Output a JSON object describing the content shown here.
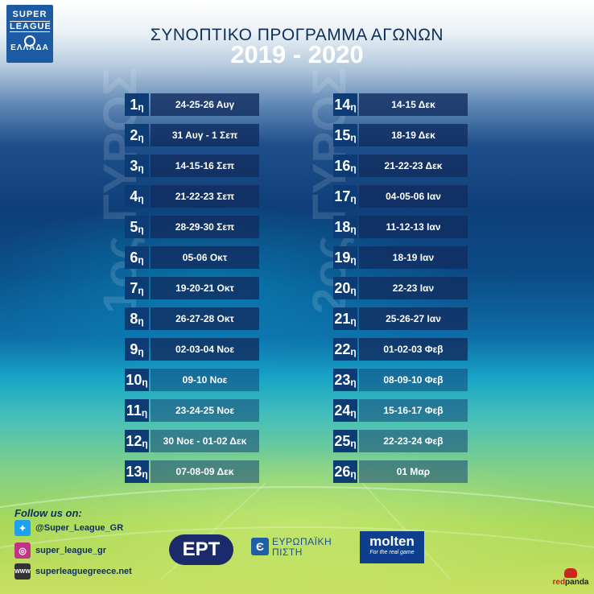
{
  "logo": {
    "line1": "SUPER",
    "line2": "LEAGUE",
    "line3": "ΕΛΛΑΔΑ"
  },
  "header": {
    "subtitle": "ΣΥΝΟΠΤΙΚΟ ΠΡΟΓΡΑΜΜΑ ΑΓΩΝΩΝ",
    "season": "2019 - 2020"
  },
  "rounds": {
    "first_label": "1ος ΓΥΡΟΣ",
    "second_label": "2ος ΓΥΡΟΣ",
    "suffix": "η",
    "first": [
      {
        "n": "1",
        "dates": "24-25-26 Αυγ"
      },
      {
        "n": "2",
        "dates": "31 Αυγ - 1 Σεπ"
      },
      {
        "n": "3",
        "dates": "14-15-16 Σεπ"
      },
      {
        "n": "4",
        "dates": "21-22-23 Σεπ"
      },
      {
        "n": "5",
        "dates": "28-29-30 Σεπ"
      },
      {
        "n": "6",
        "dates": "05-06 Οκτ"
      },
      {
        "n": "7",
        "dates": "19-20-21 Οκτ"
      },
      {
        "n": "8",
        "dates": "26-27-28 Οκτ"
      },
      {
        "n": "9",
        "dates": "02-03-04 Νοε"
      },
      {
        "n": "10",
        "dates": "09-10 Νοε"
      },
      {
        "n": "11",
        "dates": "23-24-25 Νοε"
      },
      {
        "n": "12",
        "dates": "30 Νοε - 01-02 Δεκ"
      },
      {
        "n": "13",
        "dates": "07-08-09 Δεκ"
      }
    ],
    "second": [
      {
        "n": "14",
        "dates": "14-15 Δεκ"
      },
      {
        "n": "15",
        "dates": "18-19 Δεκ"
      },
      {
        "n": "16",
        "dates": "21-22-23 Δεκ"
      },
      {
        "n": "17",
        "dates": "04-05-06 Ιαν"
      },
      {
        "n": "18",
        "dates": "11-12-13 Ιαν"
      },
      {
        "n": "19",
        "dates": "18-19 Ιαν"
      },
      {
        "n": "20",
        "dates": "22-23 Ιαν"
      },
      {
        "n": "21",
        "dates": "25-26-27 Ιαν"
      },
      {
        "n": "22",
        "dates": "01-02-03 Φεβ"
      },
      {
        "n": "23",
        "dates": "08-09-10 Φεβ"
      },
      {
        "n": "24",
        "dates": "15-16-17 Φεβ"
      },
      {
        "n": "25",
        "dates": "22-23-24 Φεβ"
      },
      {
        "n": "26",
        "dates": "01 Μαρ"
      }
    ]
  },
  "footer": {
    "follow": "Follow us on:",
    "twitter": {
      "icon": "twitter-icon",
      "handle": "@Super_League_GR",
      "color": "#1da1f2"
    },
    "instagram": {
      "icon": "instagram-icon",
      "handle": "super_league_gr",
      "color": "#c13584"
    },
    "web": {
      "icon": "www-icon",
      "handle": "superleaguegreece.net",
      "color": "#333333"
    }
  },
  "sponsors": {
    "ert": "ΕΡΤ",
    "eurobank_line1": "ΕΥΡΩΠΑΪΚΗ",
    "eurobank_line2": "ΠΙΣΤΗ",
    "molten": "molten",
    "molten_tag": "For the real game",
    "redpanda": "red",
    "redpanda2": "panda"
  }
}
